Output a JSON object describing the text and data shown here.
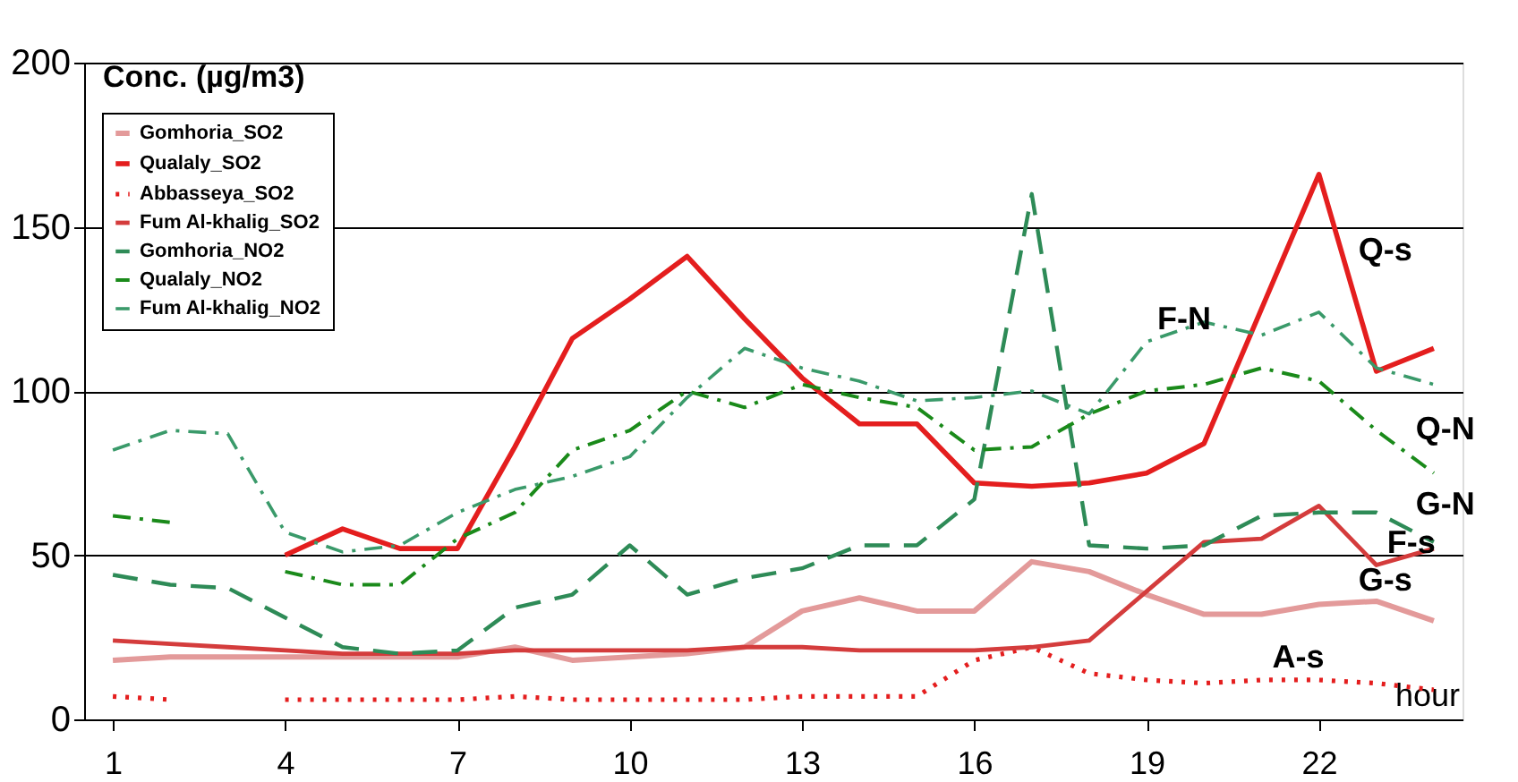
{
  "chart_data": {
    "type": "line",
    "xlabel": "hour",
    "ylabel": "Conc. (µg/m3)",
    "x": [
      1,
      2,
      3,
      4,
      5,
      6,
      7,
      8,
      9,
      10,
      11,
      12,
      13,
      14,
      15,
      16,
      17,
      18,
      19,
      20,
      21,
      22,
      23,
      24
    ],
    "xlim": [
      0.5,
      24.5
    ],
    "xticks": [
      1,
      4,
      7,
      10,
      13,
      16,
      19,
      22
    ],
    "ylim": [
      0,
      200
    ],
    "yticks": [
      0,
      50,
      100,
      150,
      200
    ],
    "grid": "y",
    "legend": "top left",
    "marker": "none",
    "series": [
      {
        "name": "Gomhoria_SO2",
        "color": "#e39a9a",
        "line_style": "solid",
        "values": [
          18,
          19,
          19,
          19,
          19,
          19,
          19,
          22,
          18,
          19,
          20,
          22,
          33,
          37,
          33,
          33,
          48,
          45,
          38,
          32,
          32,
          35,
          36,
          30
        ]
      },
      {
        "name": "Qualaly_SO2",
        "color": "#e41e1e",
        "line_style": "solid",
        "values": [
          null,
          null,
          null,
          50,
          58,
          52,
          52,
          83,
          116,
          128,
          141,
          122,
          104,
          90,
          90,
          72,
          71,
          72,
          75,
          84,
          125,
          166,
          106,
          113
        ]
      },
      {
        "name": "Abbasseya_SO2",
        "color": "#e41e1e",
        "line_style": "dotted",
        "values": [
          7,
          6,
          null,
          6,
          6,
          6,
          6,
          7,
          6,
          6,
          6,
          6,
          7,
          7,
          7,
          18,
          22,
          14,
          12,
          11,
          12,
          12,
          11,
          9
        ]
      },
      {
        "name": "Fum Al-khalig_SO2",
        "color": "#d43c3c",
        "line_style": "solid",
        "values": [
          24,
          23,
          22,
          21,
          20,
          20,
          20,
          21,
          21,
          21,
          21,
          22,
          22,
          21,
          21,
          21,
          22,
          24,
          39,
          54,
          55,
          65,
          47,
          52
        ]
      },
      {
        "name": "Gomhoria_NO2",
        "color": "#2e8b57",
        "line_style": "dashed",
        "values": [
          44,
          41,
          40,
          31,
          22,
          20,
          21,
          34,
          38,
          53,
          38,
          43,
          46,
          53,
          53,
          67,
          160,
          53,
          52,
          53,
          62,
          63,
          63,
          54
        ]
      },
      {
        "name": "Qualaly_NO2",
        "color": "#1a8a1a",
        "line_style": "dashdot",
        "values": [
          62,
          60,
          null,
          45,
          41,
          41,
          55,
          63,
          82,
          88,
          100,
          95,
          102,
          98,
          95,
          82,
          83,
          93,
          100,
          102,
          107,
          103,
          88,
          75
        ]
      },
      {
        "name": "Fum Al-khalig_NO2",
        "color": "#3a9a6a",
        "line_style": "dashdot",
        "values": [
          82,
          88,
          87,
          57,
          51,
          53,
          63,
          70,
          74,
          80,
          98,
          113,
          107,
          103,
          97,
          98,
          100,
          93,
          115,
          121,
          117,
          124,
          107,
          102
        ]
      }
    ],
    "annotations": [
      {
        "text": "Q-s",
        "x": 22.5,
        "y": 136
      },
      {
        "text": "F-N",
        "x": 19,
        "y": 115
      },
      {
        "text": "Q-N",
        "x": 23.5,
        "y": 81.5
      },
      {
        "text": "G-N",
        "x": 23.5,
        "y": 58.5
      },
      {
        "text": "F-s",
        "x": 23,
        "y": 47
      },
      {
        "text": "G-s",
        "x": 22.5,
        "y": 35.5
      },
      {
        "text": "A-s",
        "x": 21,
        "y": 12
      }
    ]
  }
}
